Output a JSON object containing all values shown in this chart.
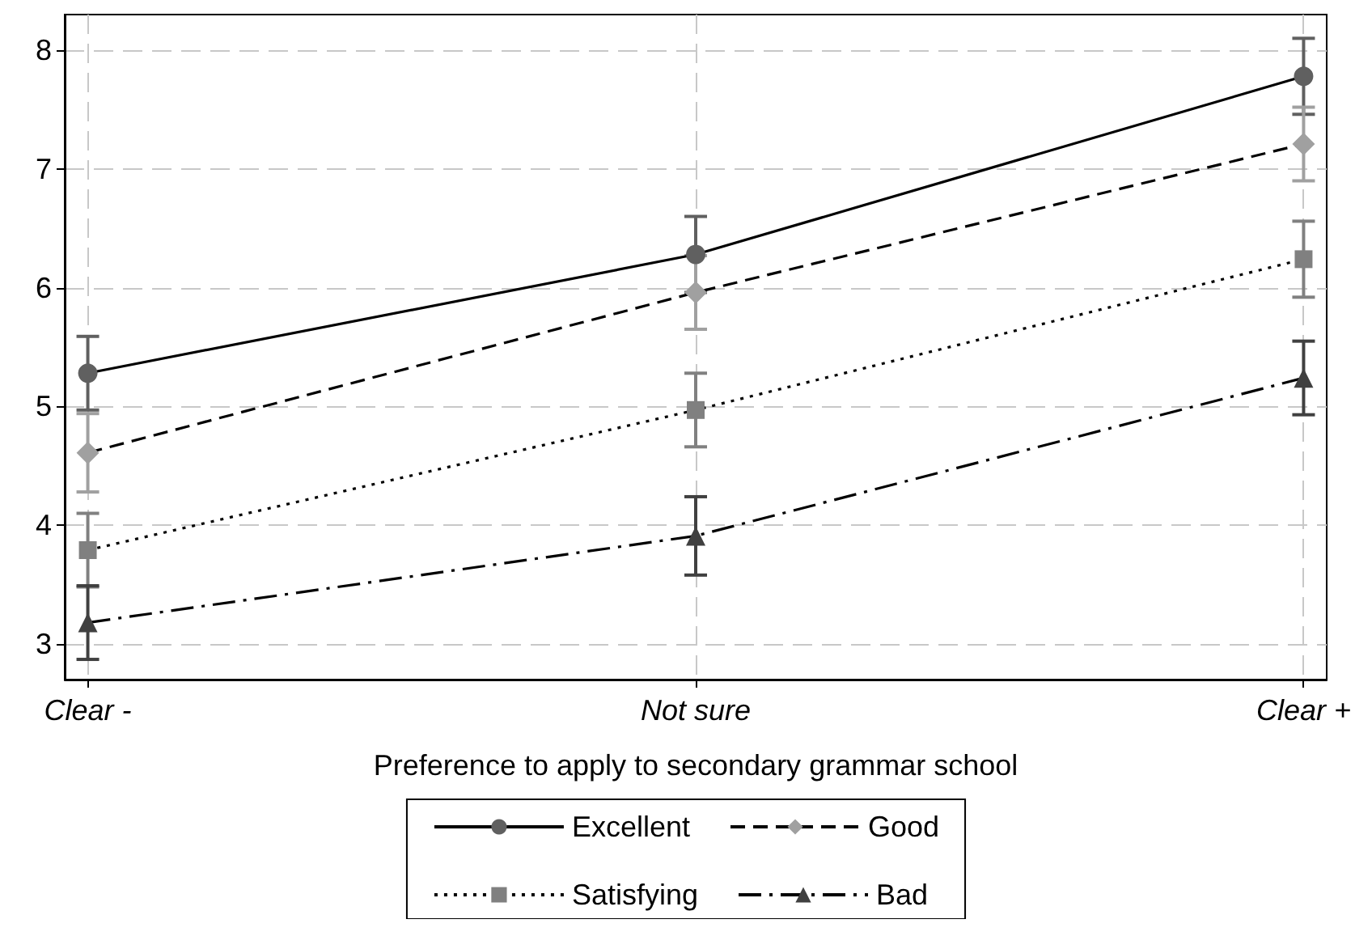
{
  "chart_data": {
    "type": "line",
    "xlabel": "Preference to apply to secondary grammar school",
    "categories": [
      "Clear -",
      "Not sure",
      "Clear +"
    ],
    "ylim": [
      2.7,
      8.3
    ],
    "yticks": [
      3,
      4,
      5,
      6,
      7,
      8
    ],
    "grid": true,
    "legend": "bottom",
    "series": [
      {
        "name": "Excellent",
        "color": "#606060",
        "marker": "circle",
        "line_style": "solid",
        "values": [
          5.28,
          6.28,
          7.78
        ],
        "errors": [
          0.31,
          0.32,
          0.32
        ]
      },
      {
        "name": "Good",
        "color": "#a0a0a0",
        "marker": "diamond",
        "line_style": "dashed",
        "values": [
          4.61,
          5.96,
          7.21
        ],
        "errors": [
          0.33,
          0.31,
          0.31
        ]
      },
      {
        "name": "Satisfying",
        "color": "#808080",
        "marker": "square",
        "line_style": "dotted",
        "values": [
          3.79,
          4.97,
          6.24
        ],
        "errors": [
          0.31,
          0.31,
          0.32
        ]
      },
      {
        "name": "Bad",
        "color": "#404040",
        "marker": "triangle",
        "line_style": "dashdot",
        "values": [
          3.18,
          3.91,
          5.24
        ],
        "errors": [
          0.31,
          0.33,
          0.31
        ]
      }
    ]
  }
}
